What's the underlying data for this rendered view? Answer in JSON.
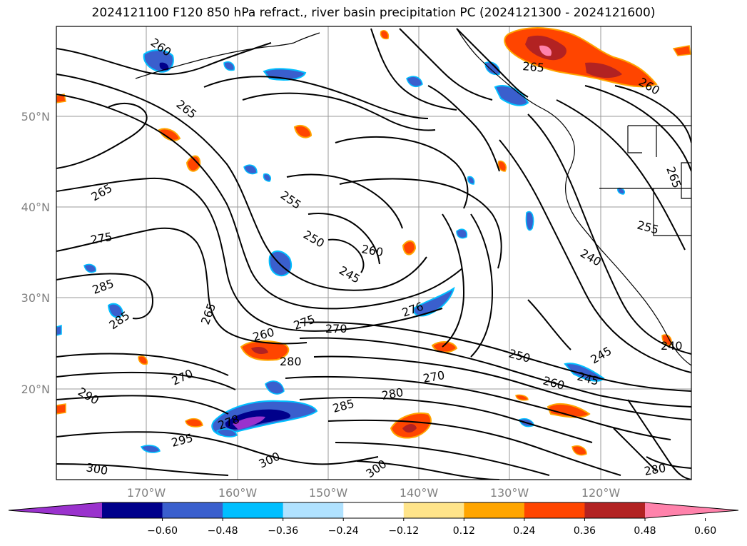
{
  "title": "2024121100 F120 850 hPa refract., river basin precipitation PC (2024121300 - 2024121600)",
  "map": {
    "lat_labels": [
      "50°N",
      "40°N",
      "30°N",
      "20°N"
    ],
    "lon_labels": [
      "170°W",
      "160°W",
      "150°W",
      "140°W",
      "130°W",
      "120°W"
    ],
    "contour_labels": [
      "260",
      "265",
      "265",
      "275",
      "285",
      "285",
      "255",
      "250",
      "260",
      "245",
      "265",
      "275",
      "270",
      "260",
      "280",
      "270",
      "290",
      "278",
      "295",
      "300",
      "300",
      "285",
      "280",
      "270",
      "250",
      "260",
      "245",
      "245",
      "240",
      "300",
      "276",
      "265",
      "260",
      "255",
      "240",
      "265",
      "280"
    ]
  },
  "colorbar": {
    "colors": [
      "#9a32cd",
      "#00008b",
      "#3a5fcd",
      "#00bfff",
      "#b0e2ff",
      "#ffffff",
      "#ffe48a",
      "#ffa500",
      "#ff4500",
      "#b22222",
      "#ff82ab"
    ],
    "ticks": [
      "−0.60",
      "−0.48",
      "−0.36",
      "−0.24",
      "−0.12",
      "0.12",
      "0.24",
      "0.36",
      "0.48",
      "0.60"
    ]
  }
}
